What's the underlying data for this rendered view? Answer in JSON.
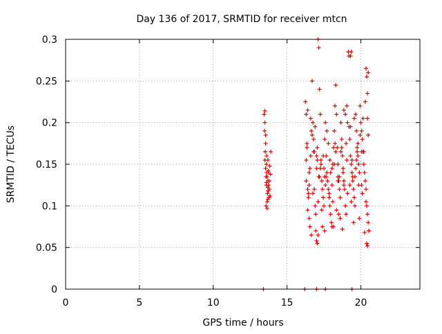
{
  "chart_data": {
    "type": "scatter",
    "title": "Day 136 of 2017, SRMTID for receiver mtcn",
    "xlabel": "GPS time / hours",
    "ylabel": "SRMTID / TECUs",
    "xlim": [
      0,
      24
    ],
    "ylim": [
      0,
      0.3
    ],
    "xticks": [
      0,
      5,
      10,
      15,
      20
    ],
    "xtick_labels": [
      "0",
      "5",
      "10",
      "15",
      "20"
    ],
    "yticks": [
      0,
      0.05,
      0.1,
      0.15,
      0.2,
      0.25,
      0.3
    ],
    "ytick_labels": [
      "0",
      "0.05",
      "0.1",
      "0.15",
      "0.2",
      "0.25",
      "0.3"
    ],
    "grid": true,
    "marker": "+",
    "marker_color": "#dd0000",
    "series": [
      {
        "name": "SRMTID",
        "x": [
          13.45,
          13.5,
          13.48,
          13.55,
          13.52,
          13.5,
          13.6,
          13.55,
          13.62,
          13.58,
          13.65,
          13.7,
          13.6,
          13.75,
          13.7,
          13.8,
          13.72,
          13.68,
          13.85,
          13.78,
          13.7,
          13.65,
          13.8,
          13.75,
          13.62,
          13.55,
          13.7,
          13.9,
          13.82,
          13.6,
          13.88,
          13.5,
          13.58,
          13.66,
          13.74,
          16.25,
          16.3,
          16.35,
          16.3,
          16.4,
          16.45,
          16.4,
          16.5,
          16.55,
          16.5,
          16.6,
          16.65,
          16.7,
          16.75,
          16.8,
          16.85,
          16.9,
          16.95,
          17.0,
          17.05,
          17.1,
          17.15,
          17.2,
          17.25,
          17.3,
          17.35,
          17.4,
          17.45,
          17.5,
          17.55,
          17.6,
          17.65,
          17.7,
          17.75,
          17.8,
          17.85,
          17.9,
          17.95,
          18.0,
          18.05,
          18.1,
          18.15,
          18.2,
          18.25,
          18.3,
          18.35,
          18.4,
          18.45,
          18.5,
          18.55,
          18.6,
          18.65,
          18.7,
          18.75,
          18.8,
          18.85,
          18.9,
          18.95,
          19.0,
          19.05,
          19.1,
          19.15,
          19.2,
          19.25,
          19.3,
          19.35,
          19.4,
          19.45,
          19.5,
          19.55,
          19.6,
          19.65,
          19.7,
          19.75,
          19.8,
          19.85,
          19.9,
          19.95,
          20.0,
          20.05,
          20.1,
          20.15,
          20.2,
          20.25,
          20.3,
          20.35,
          20.4,
          20.45,
          20.5,
          20.55,
          16.35,
          16.6,
          16.8,
          17.0,
          17.2,
          17.45,
          17.7,
          17.95,
          18.2,
          18.45,
          18.7,
          18.95,
          19.2,
          19.45,
          19.7,
          19.95,
          20.2,
          20.45,
          16.5,
          16.75,
          17.1,
          17.35,
          17.6,
          17.85,
          18.1,
          18.35,
          18.6,
          18.85,
          19.1,
          19.35,
          19.6,
          19.85,
          20.1,
          20.35,
          16.4,
          16.9,
          17.3,
          17.8,
          18.3,
          18.8,
          19.3,
          19.8,
          20.3,
          16.55,
          17.05,
          17.55,
          18.05,
          18.55,
          19.05,
          19.55,
          20.05,
          20.5,
          16.45,
          16.85,
          17.25,
          17.65,
          18.05,
          18.45,
          18.85,
          19.25,
          19.65,
          20.05,
          20.45,
          16.3,
          16.7,
          17.15,
          17.5,
          17.9,
          18.25,
          18.65,
          19.0,
          19.4,
          19.75,
          20.15,
          20.4,
          17.0,
          17.05,
          17.1,
          19.3,
          19.35,
          20.4,
          20.45,
          20.35,
          20.5,
          16.95,
          17.55,
          18.15,
          18.75,
          19.5,
          20.25,
          16.65,
          17.4,
          18.5,
          19.9,
          20.55,
          13.4,
          16.2,
          17.0,
          17.6,
          19.4
        ],
        "y": [
          0.21,
          0.2,
          0.19,
          0.175,
          0.165,
          0.155,
          0.15,
          0.145,
          0.14,
          0.135,
          0.135,
          0.13,
          0.128,
          0.125,
          0.122,
          0.12,
          0.118,
          0.115,
          0.112,
          0.11,
          0.108,
          0.105,
          0.13,
          0.14,
          0.16,
          0.185,
          0.155,
          0.165,
          0.148,
          0.125,
          0.138,
          0.214,
          0.1,
          0.097,
          0.142,
          0.225,
          0.21,
          0.17,
          0.13,
          0.12,
          0.11,
          0.095,
          0.085,
          0.075,
          0.14,
          0.16,
          0.19,
          0.25,
          0.2,
          0.18,
          0.12,
          0.1,
          0.09,
          0.16,
          0.17,
          0.3,
          0.29,
          0.24,
          0.21,
          0.15,
          0.13,
          0.12,
          0.11,
          0.1,
          0.18,
          0.2,
          0.16,
          0.14,
          0.13,
          0.12,
          0.11,
          0.1,
          0.09,
          0.08,
          0.075,
          0.15,
          0.17,
          0.19,
          0.22,
          0.245,
          0.21,
          0.17,
          0.15,
          0.13,
          0.12,
          0.11,
          0.2,
          0.18,
          0.16,
          0.14,
          0.13,
          0.12,
          0.1,
          0.09,
          0.22,
          0.2,
          0.285,
          0.28,
          0.18,
          0.16,
          0.15,
          0.14,
          0.13,
          0.12,
          0.11,
          0.1,
          0.21,
          0.19,
          0.17,
          0.16,
          0.15,
          0.14,
          0.22,
          0.2,
          0.19,
          0.18,
          0.165,
          0.15,
          0.14,
          0.13,
          0.12,
          0.1,
          0.09,
          0.08,
          0.07,
          0.175,
          0.205,
          0.165,
          0.145,
          0.135,
          0.16,
          0.19,
          0.14,
          0.15,
          0.13,
          0.17,
          0.21,
          0.195,
          0.135,
          0.155,
          0.185,
          0.165,
          0.235,
          0.125,
          0.115,
          0.105,
          0.095,
          0.125,
          0.115,
          0.105,
          0.095,
          0.085,
          0.125,
          0.115,
          0.105,
          0.135,
          0.125,
          0.115,
          0.105,
          0.215,
          0.195,
          0.155,
          0.175,
          0.165,
          0.145,
          0.195,
          0.175,
          0.225,
          0.145,
          0.155,
          0.135,
          0.145,
          0.135,
          0.155,
          0.205,
          0.165,
          0.185,
          0.115,
          0.165,
          0.145,
          0.135,
          0.125,
          0.135,
          0.215,
          0.125,
          0.145,
          0.125,
          0.205,
          0.155,
          0.185,
          0.135,
          0.145,
          0.155,
          0.175,
          0.165,
          0.175,
          0.155,
          0.165,
          0.205,
          0.255,
          0.058,
          0.055,
          0.065,
          0.28,
          0.285,
          0.055,
          0.052,
          0.265,
          0.26,
          0.07,
          0.07,
          0.075,
          0.072,
          0.08,
          0.068,
          0.065,
          0.075,
          0.09,
          0.085,
          0.07,
          0.0,
          0.0,
          0.0,
          0.0,
          0.0
        ]
      }
    ]
  }
}
